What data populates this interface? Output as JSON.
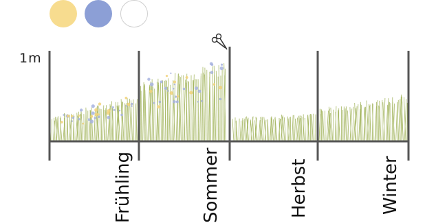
{
  "legend": [
    {
      "name": "yellow-flower-dot",
      "color": "#f7dc8f"
    },
    {
      "name": "blue-flower-dot",
      "color": "#8c9fd6"
    },
    {
      "name": "white-dot",
      "color": "#ffffff"
    }
  ],
  "scale": {
    "label": "1m"
  },
  "seasons": [
    {
      "label": "Frühling",
      "grass_height_start": 0.28,
      "grass_height_end": 0.55,
      "flowers": true
    },
    {
      "label": "Sommer",
      "grass_height_start": 0.7,
      "grass_height_end": 0.95,
      "flowers": true
    },
    {
      "label": "Herbst",
      "grass_height_start": 0.28,
      "grass_height_end": 0.33,
      "flowers": false
    },
    {
      "label": "Winter",
      "grass_height_start": 0.38,
      "grass_height_end": 0.55,
      "flowers": false
    }
  ],
  "colors": {
    "axis": "#555555",
    "grass": "#a7b865",
    "flower_yellow": "#f2d27a",
    "flower_blue": "#a7b3df"
  },
  "icons": {
    "cut_marker": "scissors-icon"
  }
}
